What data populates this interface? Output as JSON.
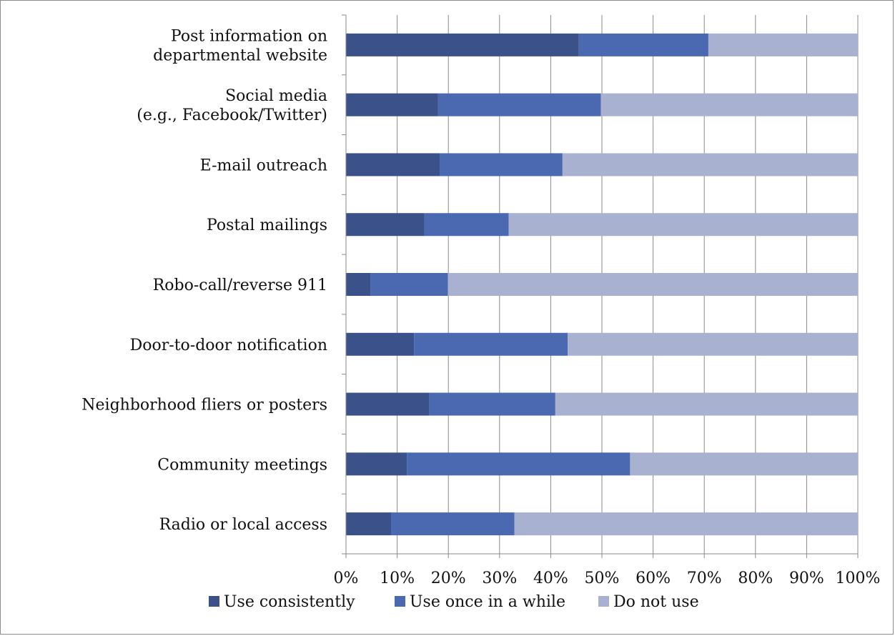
{
  "chart_data": {
    "type": "bar",
    "orientation": "horizontal",
    "stacked": "percent",
    "title": "",
    "xlabel": "",
    "ylabel": "",
    "xlim": [
      0,
      100
    ],
    "grid": true,
    "legend_position": "bottom",
    "categories": [
      [
        "Post information on",
        "departmental website"
      ],
      [
        "Social media",
        "(e.g., Facebook/Twitter)"
      ],
      [
        "E-mail outreach"
      ],
      [
        "Postal mailings"
      ],
      [
        "Robo-call/reverse 911"
      ],
      [
        "Door-to-door notification"
      ],
      [
        "Neighborhood fliers or posters"
      ],
      [
        "Community meetings"
      ],
      [
        "Radio or local access"
      ]
    ],
    "x_ticks": [
      "0%",
      "10%",
      "20%",
      "30%",
      "40%",
      "50%",
      "60%",
      "70%",
      "80%",
      "90%",
      "100%"
    ],
    "series": [
      {
        "name": "Use consistently",
        "color": "#3a5189",
        "values": [
          45.5,
          18,
          18.3,
          15.3,
          4.8,
          13.3,
          16.3,
          11.9,
          8.8
        ]
      },
      {
        "name": "Use once in a while",
        "color": "#4a69b0",
        "values": [
          25.3,
          31.8,
          24,
          16.5,
          15.1,
          30,
          24.6,
          43.6,
          24.1
        ]
      },
      {
        "name": "Do not use",
        "color": "#a9b1d0",
        "values": [
          29.2,
          50.2,
          57.7,
          68.2,
          80.1,
          56.7,
          59.1,
          44.5,
          67.1
        ]
      }
    ]
  }
}
